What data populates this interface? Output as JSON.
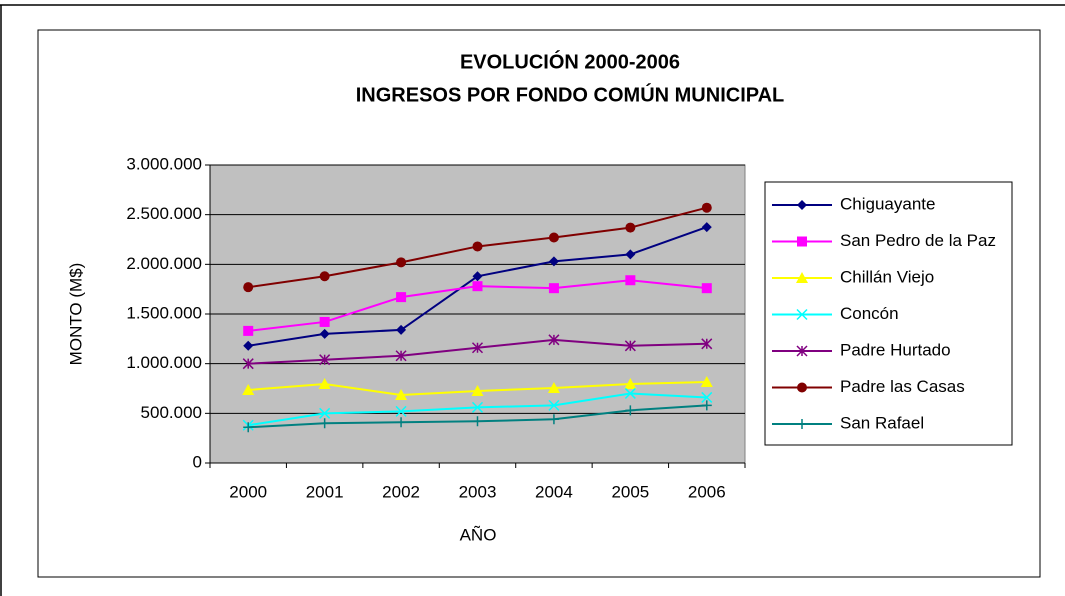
{
  "chart_data": {
    "type": "line",
    "title": [
      "EVOLUCIÓN 2000-2006",
      "INGRESOS POR FONDO COMÚN MUNICIPAL"
    ],
    "x_label": "AÑO",
    "y_label": "MONTO (M$)",
    "categories": [
      "2000",
      "2001",
      "2002",
      "2003",
      "2004",
      "2005",
      "2006"
    ],
    "series": [
      {
        "name": "Chiguayante",
        "color": "#000080",
        "marker": "diamond",
        "values": [
          1180000,
          1300000,
          1340000,
          1880000,
          2030000,
          2100000,
          2375000
        ]
      },
      {
        "name": "San Pedro de la Paz",
        "color": "#ff00ff",
        "marker": "square",
        "values": [
          1330000,
          1420000,
          1670000,
          1780000,
          1760000,
          1840000,
          1760000
        ]
      },
      {
        "name": "Chillán Viejo",
        "color": "#ffff00",
        "marker": "triangle",
        "values": [
          735000,
          795000,
          685000,
          725000,
          755000,
          795000,
          815000
        ]
      },
      {
        "name": "Concón",
        "color": "#00ffff",
        "marker": "x",
        "values": [
          380000,
          500000,
          520000,
          560000,
          580000,
          700000,
          660000
        ]
      },
      {
        "name": "Padre Hurtado",
        "color": "#800080",
        "marker": "asterisk",
        "values": [
          1000000,
          1040000,
          1080000,
          1160000,
          1240000,
          1180000,
          1200000
        ]
      },
      {
        "name": "Padre las Casas",
        "color": "#800000",
        "marker": "circle",
        "values": [
          1770000,
          1880000,
          2020000,
          2180000,
          2270000,
          2370000,
          2570000
        ]
      },
      {
        "name": "San Rafael",
        "color": "#008080",
        "marker": "plus",
        "values": [
          360000,
          400000,
          410000,
          420000,
          440000,
          530000,
          580000
        ]
      }
    ],
    "ylim": [
      0,
      3000000
    ],
    "yticks": [
      0,
      {
        "value": 500000,
        "label": "500.000"
      },
      {
        "value": 1000000,
        "label": "1.000.000"
      },
      {
        "value": 1500000,
        "label": "1.500.000"
      },
      {
        "value": 2000000,
        "label": "2.000.000"
      },
      {
        "value": 2500000,
        "label": "2.500.000"
      },
      {
        "value": 3000000,
        "label": "3.000.000"
      }
    ],
    "grid": true,
    "legend": "right"
  }
}
